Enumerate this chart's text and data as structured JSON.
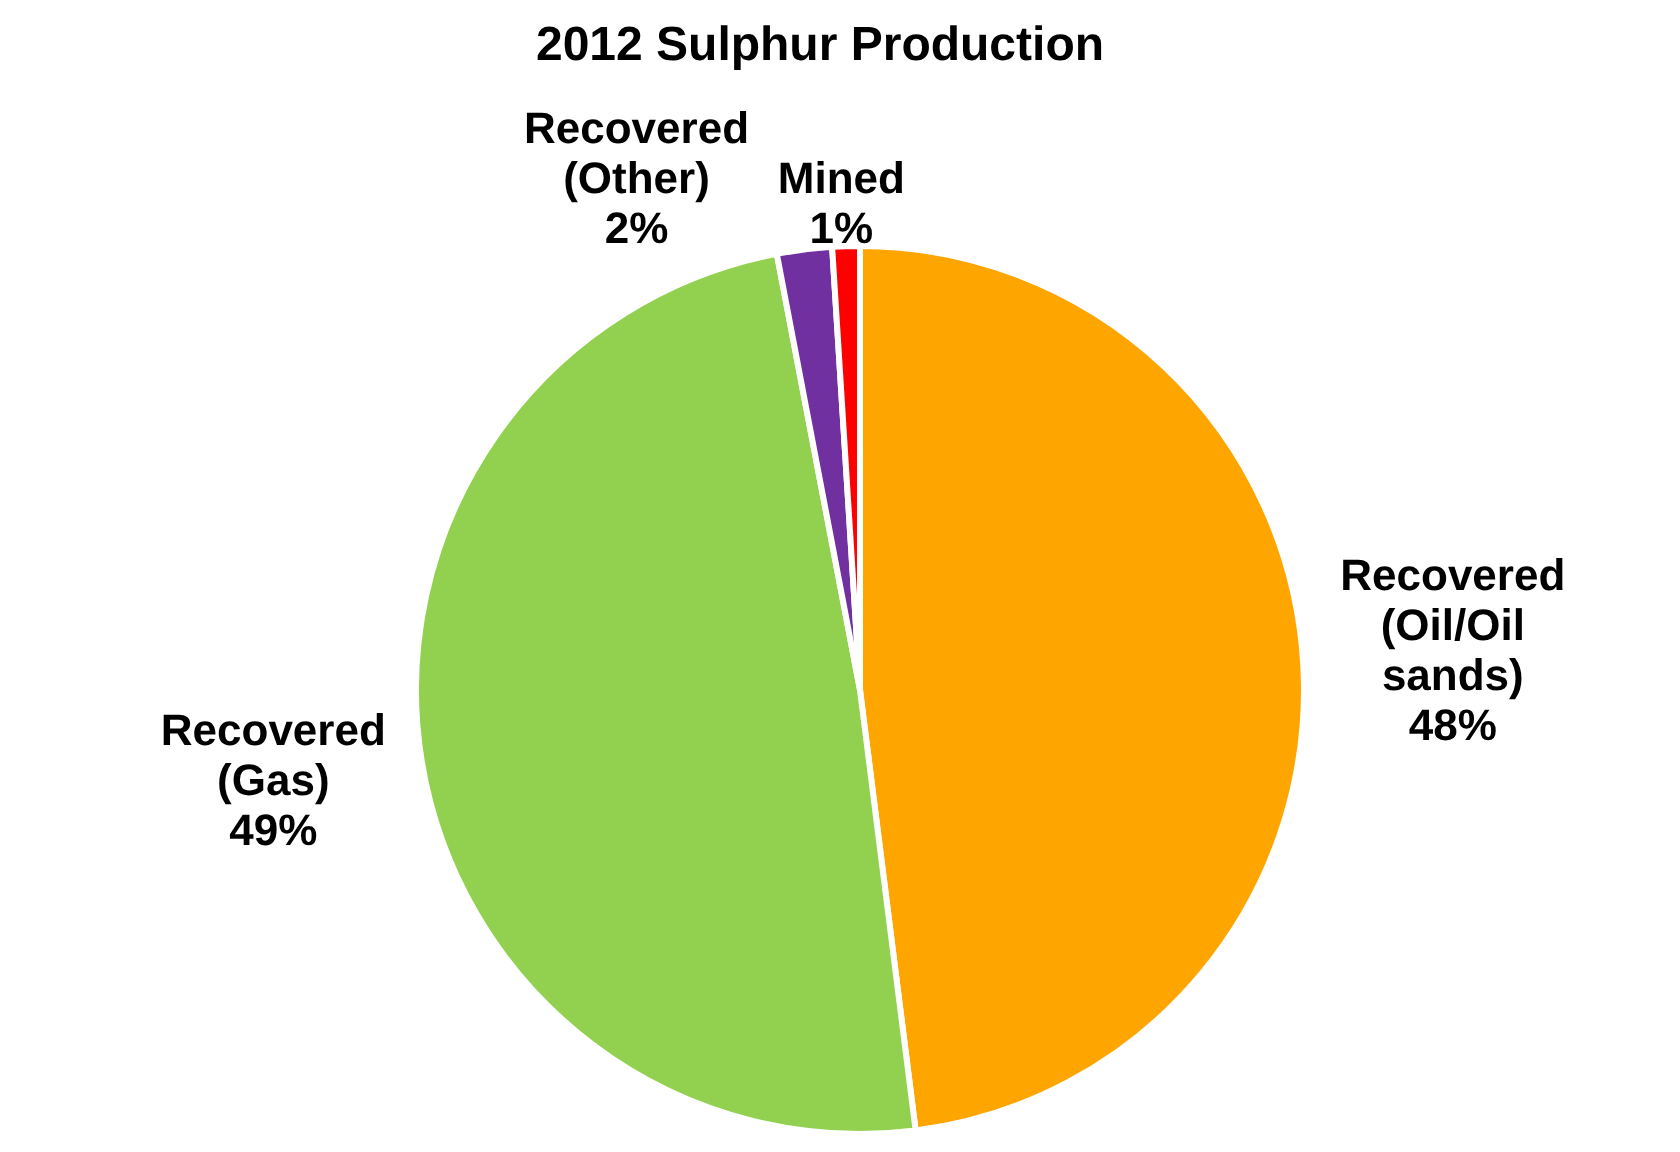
{
  "chart_data": {
    "type": "pie",
    "title": "2012 Sulphur Production",
    "categories": [
      "Recovered (Oil/Oil sands)",
      "Recovered (Gas)",
      "Recovered (Other)",
      "Mined"
    ],
    "values": [
      48,
      49,
      2,
      1
    ],
    "value_labels": [
      "48%",
      "49%",
      "2%",
      "1%"
    ],
    "colors": [
      "#ffa500",
      "#92d050",
      "#7030a0",
      "#ff0000"
    ],
    "legend": false
  }
}
